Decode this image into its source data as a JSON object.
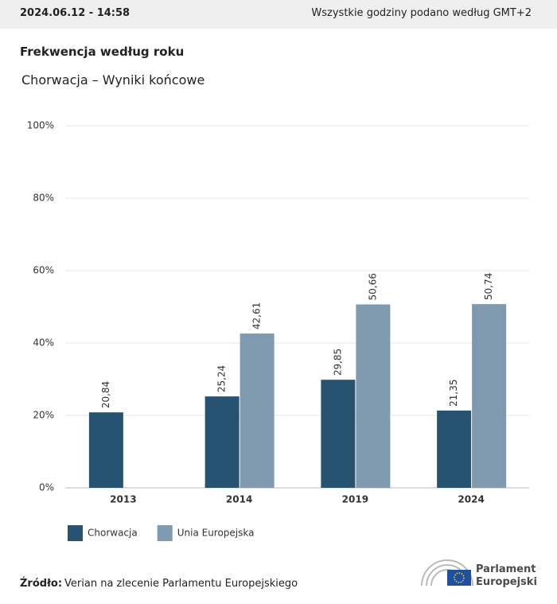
{
  "header": {
    "timestamp": "2024.06.12 - 14:58",
    "timezone_note": "Wszystkie godziny podano według GMT+2"
  },
  "chart_data": {
    "type": "bar",
    "title": "Frekwencja według roku",
    "subtitle": "Chorwacja – Wyniki końcowe",
    "categories": [
      "2013",
      "2014",
      "2019",
      "2024"
    ],
    "series": [
      {
        "name": "Chorwacja",
        "color": "#26536f",
        "values": [
          20.84,
          25.24,
          29.85,
          21.35
        ],
        "value_labels": [
          "20,84",
          "25,24",
          "29,85",
          "21,35"
        ]
      },
      {
        "name": "Unia Europejska",
        "color": "#7f9aae",
        "values": [
          null,
          42.61,
          50.66,
          50.74
        ],
        "value_labels": [
          null,
          "42,61",
          "50,66",
          "50,74"
        ]
      }
    ],
    "ylim": [
      0,
      100
    ],
    "yticks": [
      {
        "value": 0,
        "label": "0%"
      },
      {
        "value": 20,
        "label": "20%"
      },
      {
        "value": 40,
        "label": "40%"
      },
      {
        "value": 60,
        "label": "60%"
      },
      {
        "value": 80,
        "label": "80%"
      },
      {
        "value": 100,
        "label": "100%"
      }
    ],
    "grid": true,
    "legend": "bottom-left"
  },
  "footer": {
    "source_label": "Źródło:",
    "source_text": "Verian na zlecenie Parlamentu Europejskiego",
    "logo_lines": [
      "Parlament",
      "Europejski"
    ]
  }
}
